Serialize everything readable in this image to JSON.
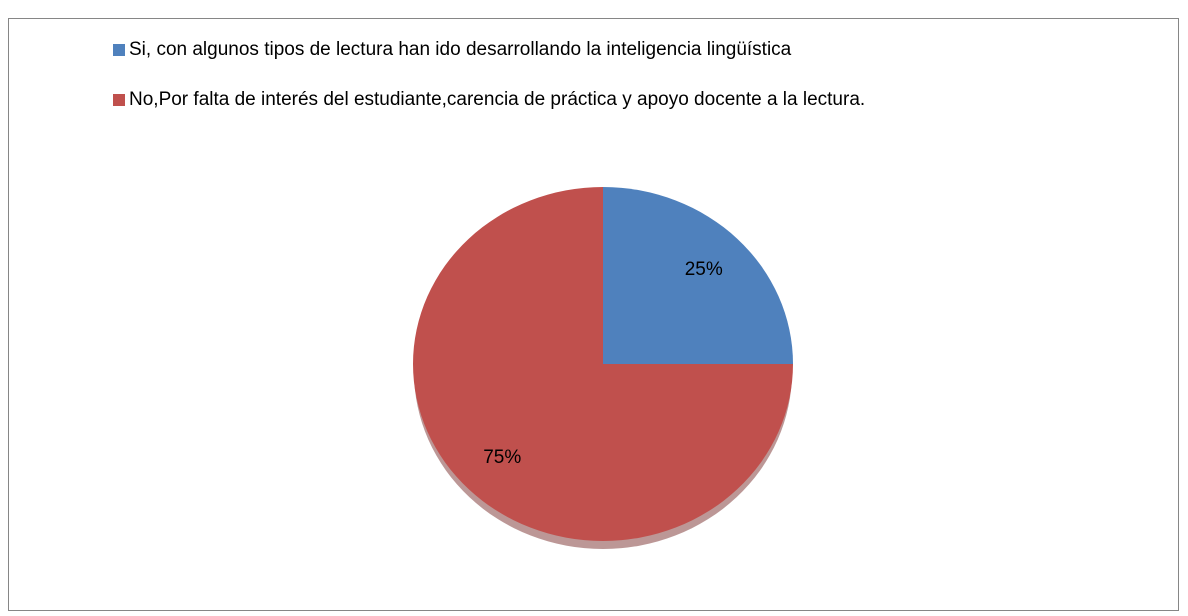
{
  "chart_data": {
    "type": "pie",
    "categories": [
      "Si, con algunos tipos de lectura han ido desarrollando la inteligencia lingüística",
      "No,Por falta de interés del estudiante,carencia de práctica y apoyo docente a la lectura."
    ],
    "values": [
      25,
      75
    ],
    "value_labels": [
      "25%",
      "75%"
    ],
    "colors": [
      "#4f81bd",
      "#c0504d"
    ]
  }
}
